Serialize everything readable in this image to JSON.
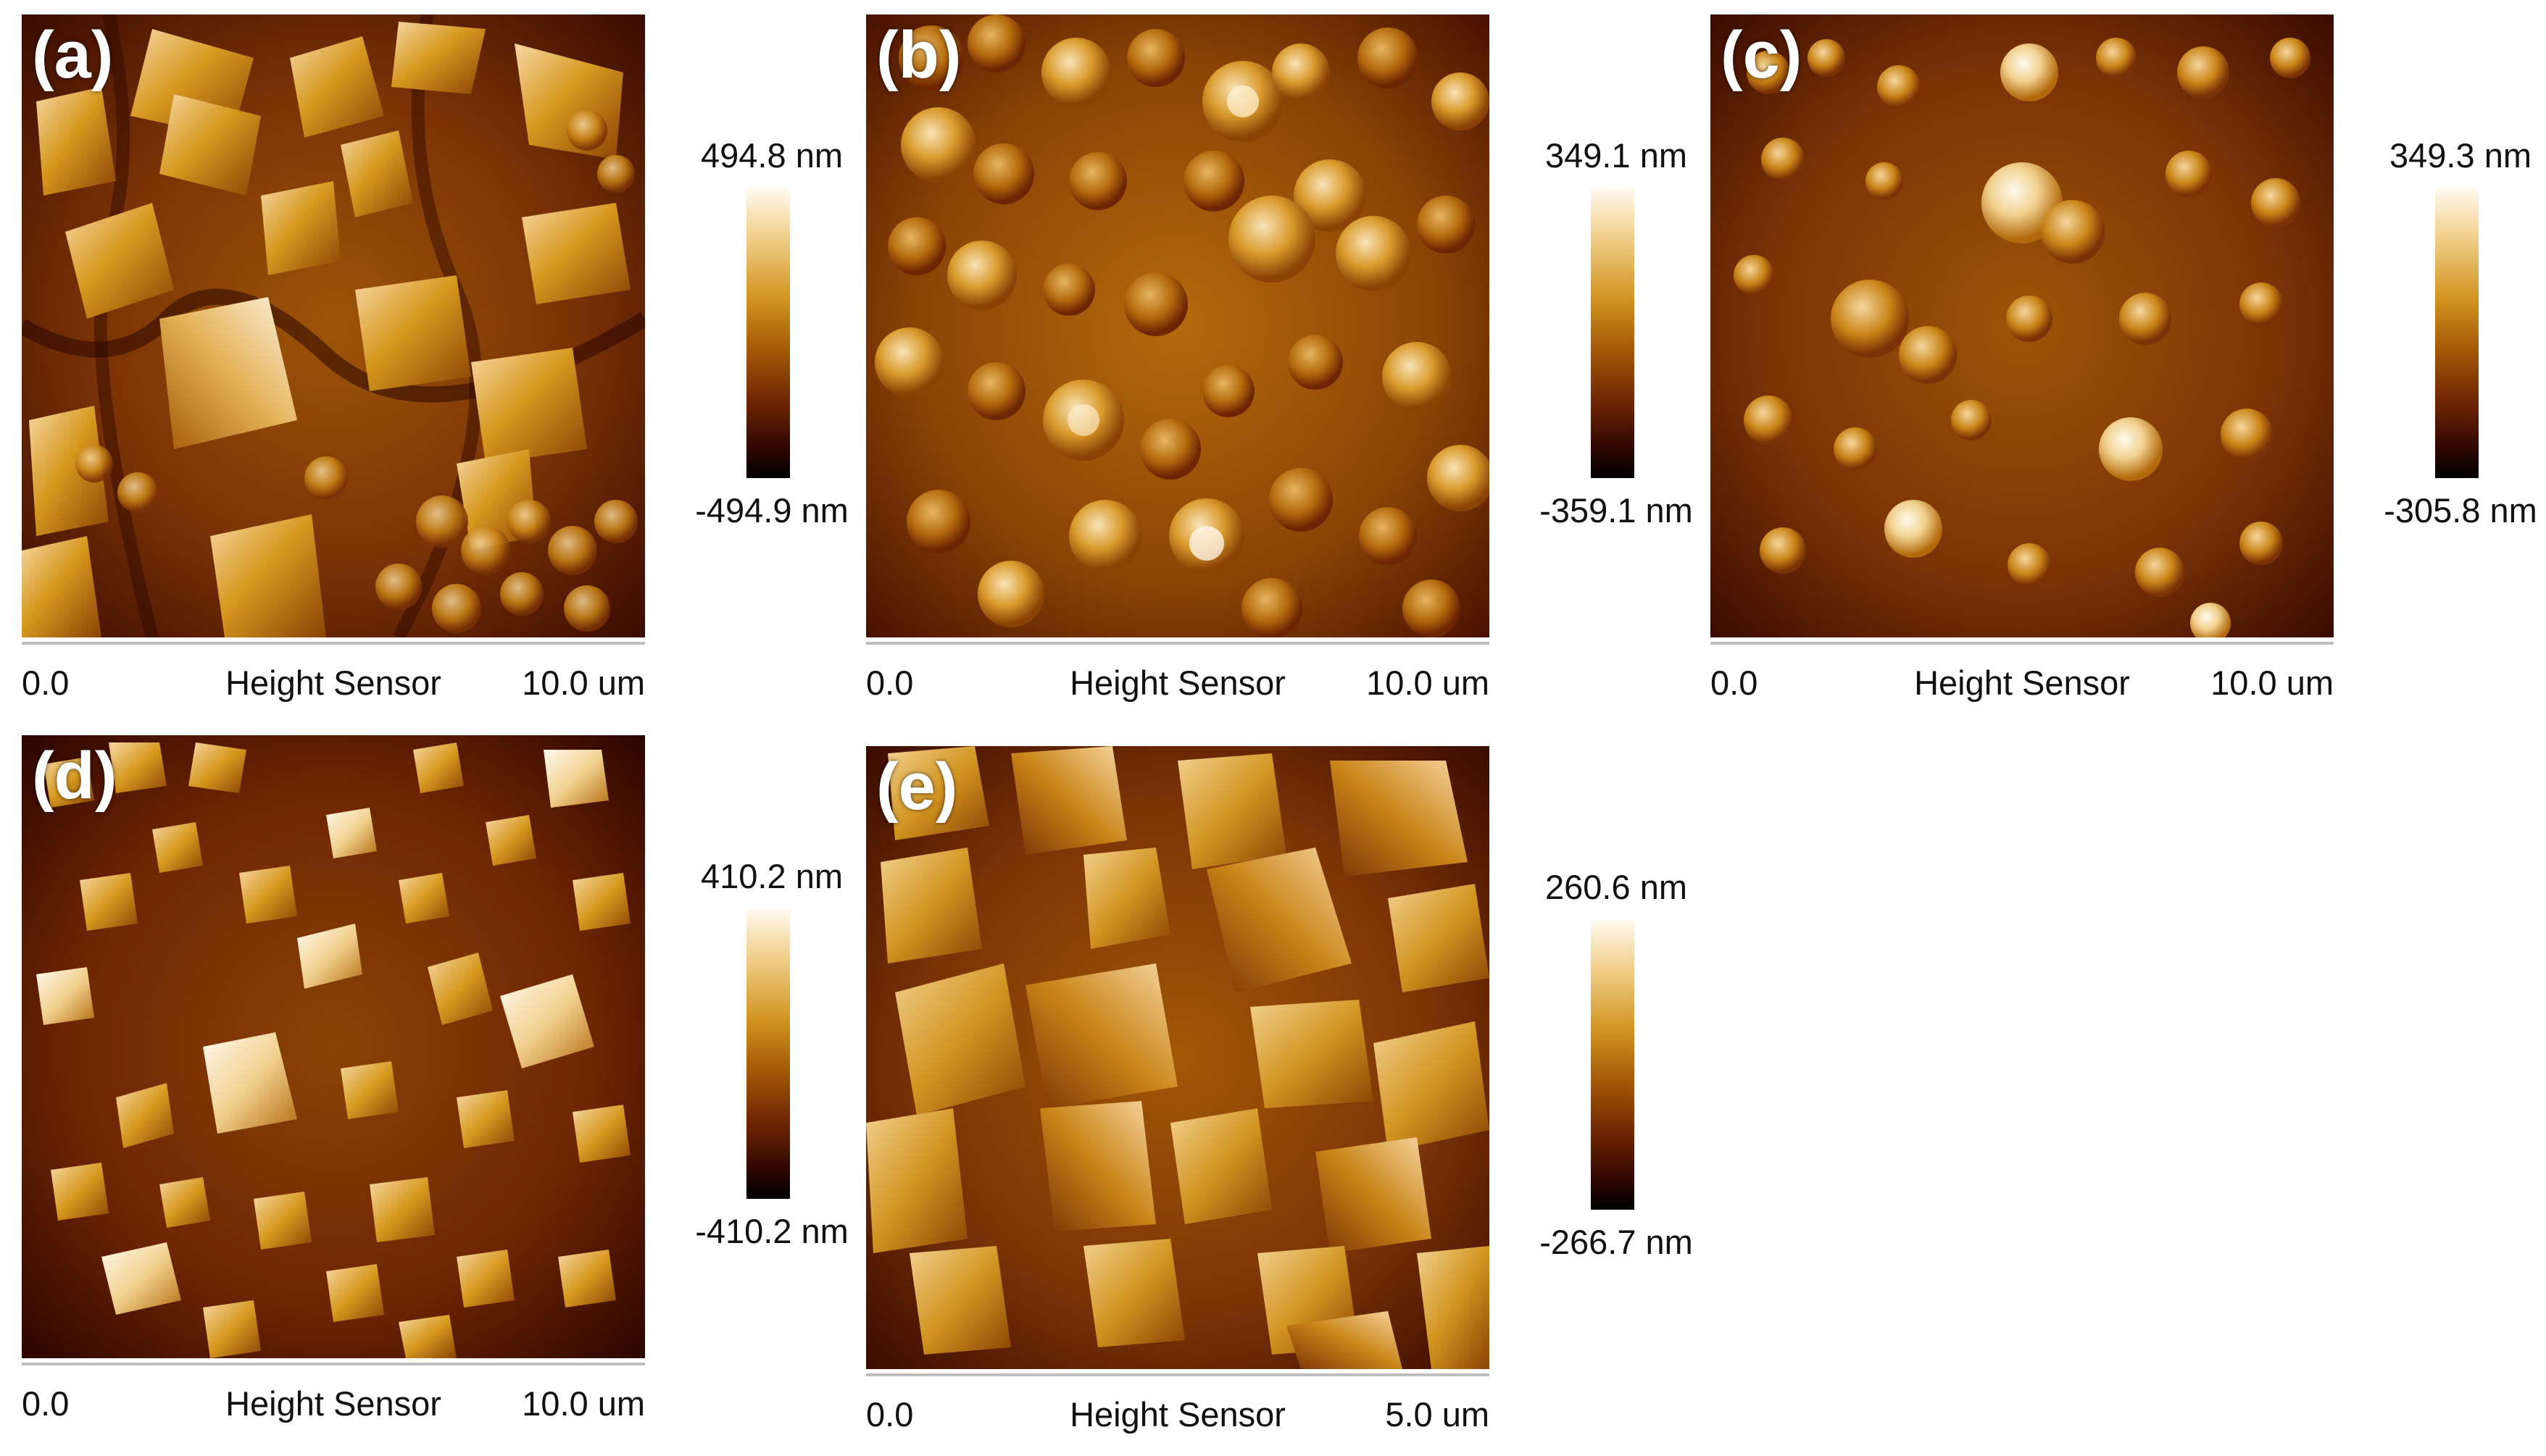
{
  "figure": {
    "panels": [
      {
        "label": "(a)",
        "axis_start": "0.0",
        "axis_title": "Height Sensor",
        "axis_end": "10.0 um",
        "scale_max": "494.8 nm",
        "scale_min": "-494.9 nm",
        "texture": "large-crystals"
      },
      {
        "label": "(b)",
        "axis_start": "0.0",
        "axis_title": "Height Sensor",
        "axis_end": "10.0 um",
        "scale_max": "349.1 nm",
        "scale_min": "-359.1 nm",
        "texture": "granular-clusters"
      },
      {
        "label": "(c)",
        "axis_start": "0.0",
        "axis_title": "Height Sensor",
        "axis_end": "10.0 um",
        "scale_max": "349.3 nm",
        "scale_min": "-305.8 nm",
        "texture": "mixed-clusters"
      },
      {
        "label": "(d)",
        "axis_start": "0.0",
        "axis_title": "Height Sensor",
        "axis_end": "10.0 um",
        "scale_max": "410.2 nm",
        "scale_min": "-410.2 nm",
        "texture": "small-crystals"
      },
      {
        "label": "(e)",
        "axis_start": "0.0",
        "axis_title": "Height Sensor",
        "axis_end": "5.0 um",
        "scale_max": "260.6 nm",
        "scale_min": "-266.7 nm",
        "texture": "large-crystals-zoom"
      }
    ]
  },
  "colors": {
    "colormap": [
      "#000000",
      "#2d0600",
      "#6e2503",
      "#a35806",
      "#d29420",
      "#f1d18f",
      "#fffaf0"
    ],
    "axis_line": "#bdbdbd",
    "label": "#ffffff",
    "text": "#111111"
  }
}
